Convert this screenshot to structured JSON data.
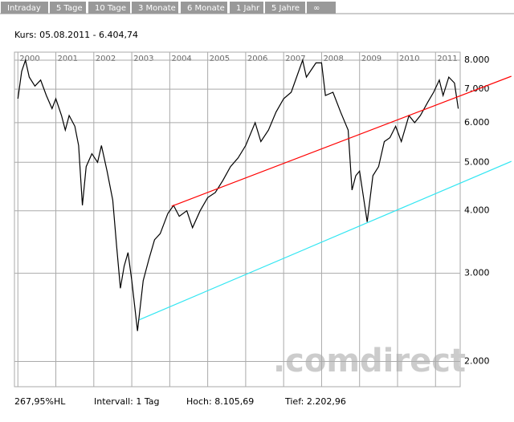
{
  "tabs": [
    "Intraday",
    "5 Tage",
    "10 Tage",
    "3 Monate",
    "6 Monate",
    "1 Jahr",
    "5 Jahre",
    "∞"
  ],
  "chart_data": {
    "type": "line",
    "title": "Kurs: 05.08.2011 - 6.404,74",
    "log_scale": true,
    "grid": true,
    "xlim": [
      1999.91,
      2011.65
    ],
    "xticks": [
      2000,
      2001,
      2002,
      2003,
      2004,
      2005,
      2006,
      2007,
      2008,
      2009,
      2010,
      2011
    ],
    "ylim": [
      1780,
      8300
    ],
    "yticks": [
      {
        "value": 2000,
        "label": "2.000"
      },
      {
        "value": 3000,
        "label": "3.000"
      },
      {
        "value": 4000,
        "label": "4.000"
      },
      {
        "value": 5000,
        "label": "5.000"
      },
      {
        "value": 6000,
        "label": "6.000"
      },
      {
        "value": 7000,
        "label": "7.000"
      },
      {
        "value": 8000,
        "label": "8.000"
      }
    ],
    "series": [
      {
        "color": "#000000",
        "x": [
          2000.0,
          2000.1,
          2000.2,
          2000.3,
          2000.45,
          2000.6,
          2000.75,
          2000.9,
          2001.0,
          2001.15,
          2001.25,
          2001.35,
          2001.5,
          2001.6,
          2001.7,
          2001.8,
          2001.95,
          2002.1,
          2002.2,
          2002.35,
          2002.5,
          2002.6,
          2002.7,
          2002.8,
          2002.9,
          2003.0,
          2003.15,
          2003.3,
          2003.45,
          2003.6,
          2003.75,
          2003.95,
          2004.1,
          2004.25,
          2004.45,
          2004.6,
          2004.8,
          2005.0,
          2005.2,
          2005.4,
          2005.6,
          2005.8,
          2006.0,
          2006.25,
          2006.4,
          2006.6,
          2006.8,
          2007.0,
          2007.2,
          2007.5,
          2007.6,
          2007.85,
          2008.0,
          2008.1,
          2008.3,
          2008.5,
          2008.7,
          2008.8,
          2008.9,
          2009.0,
          2009.2,
          2009.35,
          2009.5,
          2009.65,
          2009.8,
          2009.95,
          2010.1,
          2010.3,
          2010.45,
          2010.6,
          2010.8,
          2010.95,
          2011.1,
          2011.2,
          2011.35,
          2011.5,
          2011.6
        ],
        "values": [
          6700,
          7600,
          8000,
          7400,
          7100,
          7300,
          6800,
          6400,
          6700,
          6200,
          5800,
          6200,
          5900,
          5400,
          4100,
          4900,
          5200,
          5000,
          5400,
          4800,
          4200,
          3400,
          2800,
          3100,
          3300,
          2900,
          2300,
          2900,
          3200,
          3500,
          3600,
          3950,
          4100,
          3900,
          4000,
          3700,
          4000,
          4250,
          4350,
          4600,
          4900,
          5100,
          5400,
          6000,
          5500,
          5800,
          6300,
          6700,
          6900,
          8000,
          7400,
          7900,
          7900,
          6800,
          6900,
          6300,
          5800,
          4400,
          4700,
          4800,
          3800,
          4700,
          4900,
          5500,
          5600,
          5900,
          5500,
          6200,
          6000,
          6200,
          6600,
          6900,
          7300,
          6800,
          7400,
          7200,
          6400
        ]
      }
    ],
    "trendlines": [
      {
        "color": "#ff0000",
        "x": [
          2004.05,
          2013.0
        ],
        "values": [
          4083,
          7430
        ]
      },
      {
        "color": "#33e6f2",
        "x": [
          2003.2,
          2013.0
        ],
        "values": [
          2422,
          5022
        ]
      }
    ]
  },
  "watermark": ".comdirect",
  "footer": [
    "267,95%HL",
    "Intervall: 1 Tag",
    "Hoch: 8.105,69",
    "Tief: 2.202,96"
  ]
}
